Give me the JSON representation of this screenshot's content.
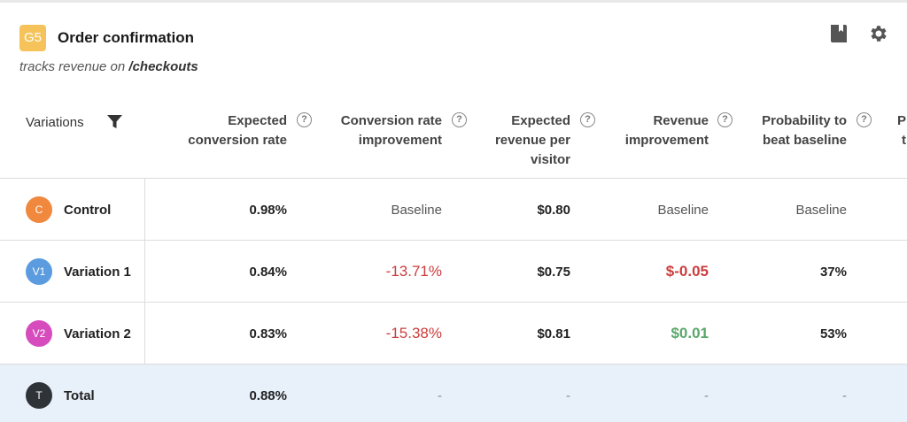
{
  "goal": {
    "badge": "G5",
    "title": "Order confirmation",
    "subtitle_prefix": "tracks revenue on ",
    "subtitle_path": "/checkouts"
  },
  "toolbar": {
    "icons": [
      "book-icon",
      "gear-icon"
    ]
  },
  "table": {
    "variations_header": "Variations",
    "columns": [
      {
        "label_lines": [
          "Expected",
          "conversion rate"
        ]
      },
      {
        "label_lines": [
          "Conversion rate",
          "improvement"
        ]
      },
      {
        "label_lines": [
          "Expected",
          "revenue per",
          "visitor"
        ]
      },
      {
        "label_lines": [
          "Revenue",
          "improvement"
        ]
      },
      {
        "label_lines": [
          "Probability to",
          "beat baseline"
        ]
      },
      {
        "label_lines": [
          "P",
          "t"
        ]
      }
    ],
    "help_glyph": "?",
    "rows": [
      {
        "badge": "C",
        "badge_color": "#f0883e",
        "name": "Control",
        "cells": [
          "0.98%",
          "Baseline",
          "$0.80",
          "Baseline",
          "Baseline"
        ]
      },
      {
        "badge": "V1",
        "badge_color": "#5b9be0",
        "name": "Variation 1",
        "cells": [
          "0.84%",
          "-13.71%",
          "$0.75",
          "$-0.05",
          "37%"
        ]
      },
      {
        "badge": "V2",
        "badge_color": "#d64cbd",
        "name": "Variation 2",
        "cells": [
          "0.83%",
          "-15.38%",
          "$0.81",
          "$0.01",
          "53%"
        ]
      },
      {
        "badge": "T",
        "badge_color": "#2e3338",
        "name": "Total",
        "cells": [
          "0.88%",
          "-",
          "-",
          "-",
          "-"
        ]
      }
    ]
  },
  "colors": {
    "negative": "#cc3d3d",
    "positive": "#5aa86a",
    "goal_badge": "#f5c35a",
    "total_row_bg": "#e8f0fa"
  }
}
